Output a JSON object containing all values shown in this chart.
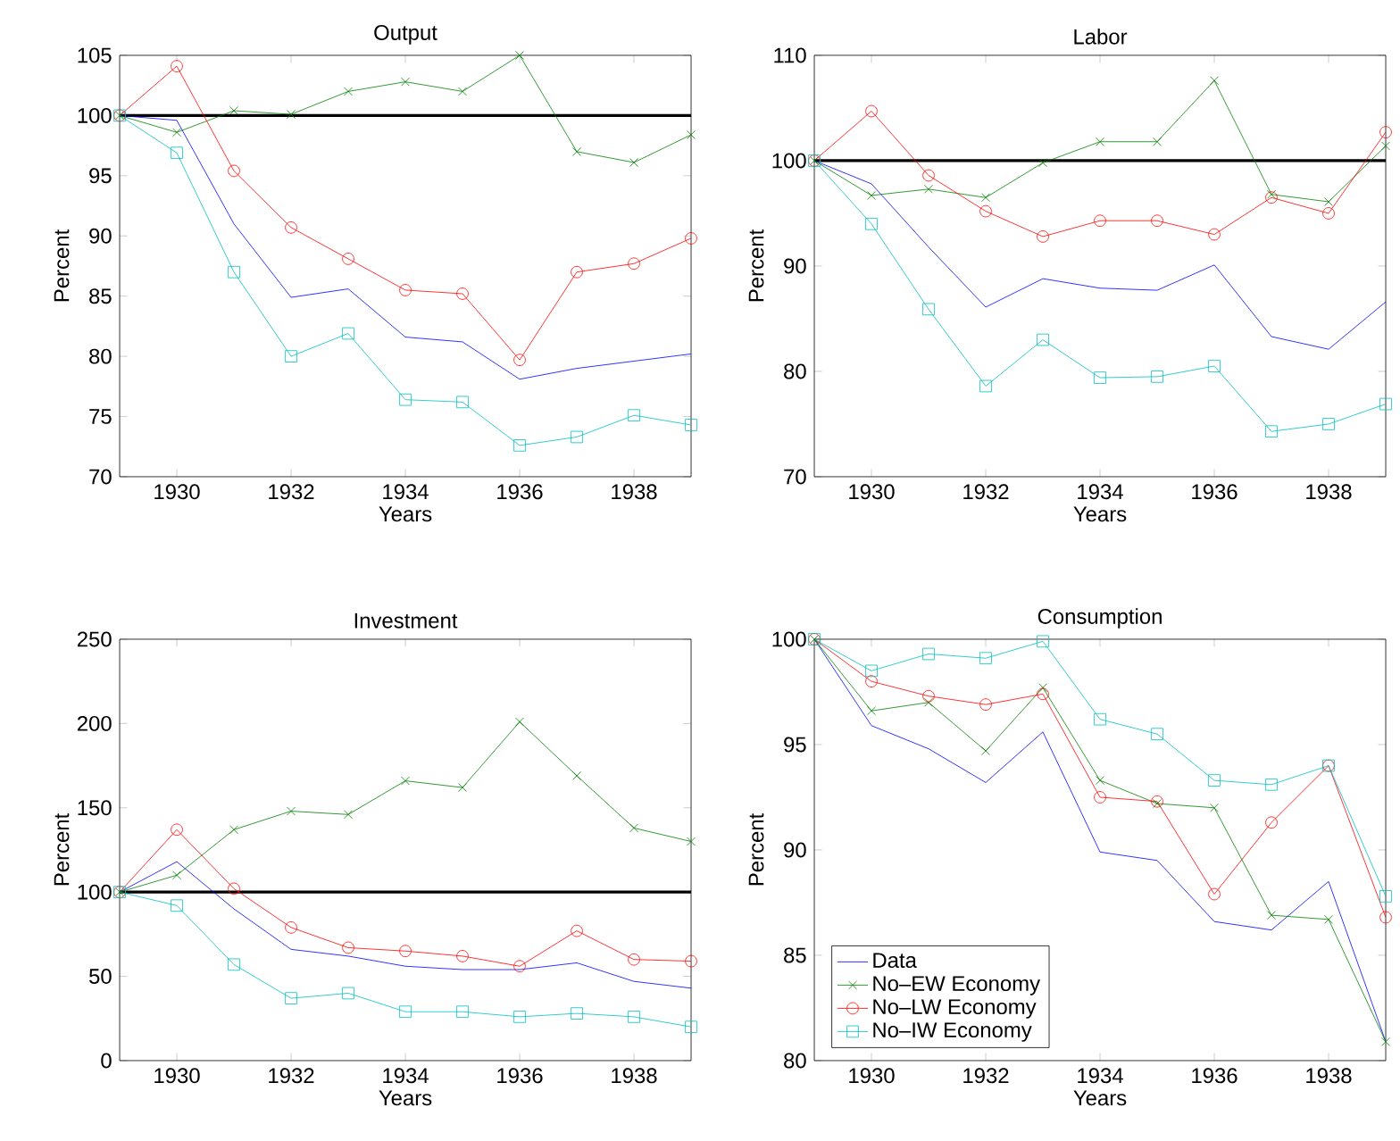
{
  "chart_data": [
    {
      "type": "line",
      "title": "Output",
      "xlabel": "Years",
      "ylabel": "Percent",
      "x": [
        1929,
        1930,
        1931,
        1932,
        1933,
        1934,
        1935,
        1936,
        1937,
        1938,
        1939
      ],
      "xlim": [
        1929,
        1939
      ],
      "xticks": [
        1930,
        1932,
        1934,
        1936,
        1938
      ],
      "ylim": [
        70,
        105
      ],
      "yticks": [
        70,
        75,
        80,
        85,
        90,
        95,
        100,
        105
      ],
      "grid": false,
      "legend": false,
      "ref_lines": [
        {
          "axis": "y",
          "value": 100,
          "color": "#000000"
        }
      ],
      "series": [
        {
          "color": "#0000ff",
          "marker": "none",
          "values": [
            100,
            99.6,
            91,
            84.9,
            85.6,
            81.6,
            81.2,
            78.1,
            79.0,
            79.6,
            80.2
          ]
        },
        {
          "color": "#008000",
          "marker": "cross",
          "values": [
            100,
            98.6,
            100.4,
            100.1,
            102,
            102.8,
            102,
            105,
            97,
            96.1,
            98.4
          ]
        },
        {
          "color": "#ff0000",
          "marker": "circle",
          "values": [
            100,
            104.1,
            95.4,
            90.7,
            88.1,
            85.5,
            85.2,
            79.7,
            87.0,
            87.7,
            89.8
          ]
        },
        {
          "color": "#00bfbf",
          "marker": "square",
          "values": [
            100,
            96.9,
            87,
            80,
            81.9,
            76.4,
            76.2,
            72.6,
            73.3,
            75.1,
            74.3
          ]
        }
      ]
    },
    {
      "type": "line",
      "title": "Labor",
      "xlabel": "Years",
      "ylabel": "Percent",
      "x": [
        1929,
        1930,
        1931,
        1932,
        1933,
        1934,
        1935,
        1936,
        1937,
        1938,
        1939
      ],
      "xlim": [
        1929,
        1939
      ],
      "xticks": [
        1930,
        1932,
        1934,
        1936,
        1938
      ],
      "ylim": [
        70,
        110
      ],
      "yticks": [
        70,
        80,
        90,
        100,
        110
      ],
      "grid": false,
      "legend": false,
      "ref_lines": [
        {
          "axis": "y",
          "value": 100,
          "color": "#000000"
        }
      ],
      "series": [
        {
          "color": "#0000ff",
          "marker": "none",
          "values": [
            100,
            97.8,
            91.8,
            86.1,
            88.8,
            87.9,
            87.7,
            90.1,
            83.3,
            82.1,
            86.6
          ]
        },
        {
          "color": "#008000",
          "marker": "cross",
          "values": [
            100,
            96.7,
            97.3,
            96.5,
            99.8,
            101.8,
            101.8,
            107.6,
            96.8,
            96.1,
            101.4
          ]
        },
        {
          "color": "#ff0000",
          "marker": "circle",
          "values": [
            100,
            104.7,
            98.6,
            95.2,
            92.8,
            94.3,
            94.3,
            93,
            96.5,
            95,
            102.7
          ]
        },
        {
          "color": "#00bfbf",
          "marker": "square",
          "values": [
            100,
            94,
            85.9,
            78.6,
            83,
            79.4,
            79.5,
            80.5,
            74.3,
            75,
            76.9
          ]
        }
      ]
    },
    {
      "type": "line",
      "title": "Investment",
      "xlabel": "Years",
      "ylabel": "Percent",
      "x": [
        1929,
        1930,
        1931,
        1932,
        1933,
        1934,
        1935,
        1936,
        1937,
        1938,
        1939
      ],
      "xlim": [
        1929,
        1939
      ],
      "xticks": [
        1930,
        1932,
        1934,
        1936,
        1938
      ],
      "ylim": [
        0,
        250
      ],
      "yticks": [
        0,
        50,
        100,
        150,
        200,
        250
      ],
      "grid": false,
      "legend": false,
      "ref_lines": [
        {
          "axis": "y",
          "value": 100,
          "color": "#000000"
        }
      ],
      "series": [
        {
          "color": "#0000ff",
          "marker": "none",
          "values": [
            100,
            118,
            90,
            66,
            62,
            56,
            54,
            54,
            58,
            47,
            43
          ]
        },
        {
          "color": "#008000",
          "marker": "cross",
          "values": [
            100,
            110,
            137,
            148,
            146,
            166,
            162,
            201,
            169,
            138,
            130
          ]
        },
        {
          "color": "#ff0000",
          "marker": "circle",
          "values": [
            100,
            137,
            102,
            79,
            67,
            65,
            62,
            56,
            77,
            60,
            59
          ]
        },
        {
          "color": "#00bfbf",
          "marker": "square",
          "values": [
            100,
            92,
            57,
            37,
            40,
            29,
            29,
            26,
            28,
            26,
            20
          ]
        }
      ]
    },
    {
      "type": "line",
      "title": "Consumption",
      "xlabel": "Years",
      "ylabel": "Percent",
      "x": [
        1929,
        1930,
        1931,
        1932,
        1933,
        1934,
        1935,
        1936,
        1937,
        1938,
        1939
      ],
      "xlim": [
        1929,
        1939
      ],
      "xticks": [
        1930,
        1932,
        1934,
        1936,
        1938
      ],
      "ylim": [
        80,
        100
      ],
      "yticks": [
        80,
        85,
        90,
        95,
        100
      ],
      "grid": false,
      "legend": "bottom left",
      "series": [
        {
          "name": "Data",
          "color": "#0000ff",
          "marker": "none",
          "values": [
            100,
            95.9,
            94.8,
            93.2,
            95.6,
            89.9,
            89.5,
            86.6,
            86.2,
            88.5,
            80.9
          ]
        },
        {
          "name": "No–EW Economy",
          "color": "#008000",
          "marker": "cross",
          "values": [
            100,
            96.6,
            97.0,
            94.7,
            97.7,
            93.3,
            92.2,
            92.0,
            86.9,
            86.7,
            80.9
          ]
        },
        {
          "name": "No–LW Economy",
          "color": "#ff0000",
          "marker": "circle",
          "values": [
            100,
            98.0,
            97.3,
            96.9,
            97.4,
            92.5,
            92.3,
            87.9,
            91.3,
            94.0,
            86.8
          ]
        },
        {
          "name": "No–IW Economy",
          "color": "#00bfbf",
          "marker": "square",
          "values": [
            100,
            98.5,
            99.3,
            99.1,
            99.9,
            96.2,
            95.5,
            93.3,
            93.1,
            94.0,
            87.8
          ]
        }
      ]
    }
  ]
}
